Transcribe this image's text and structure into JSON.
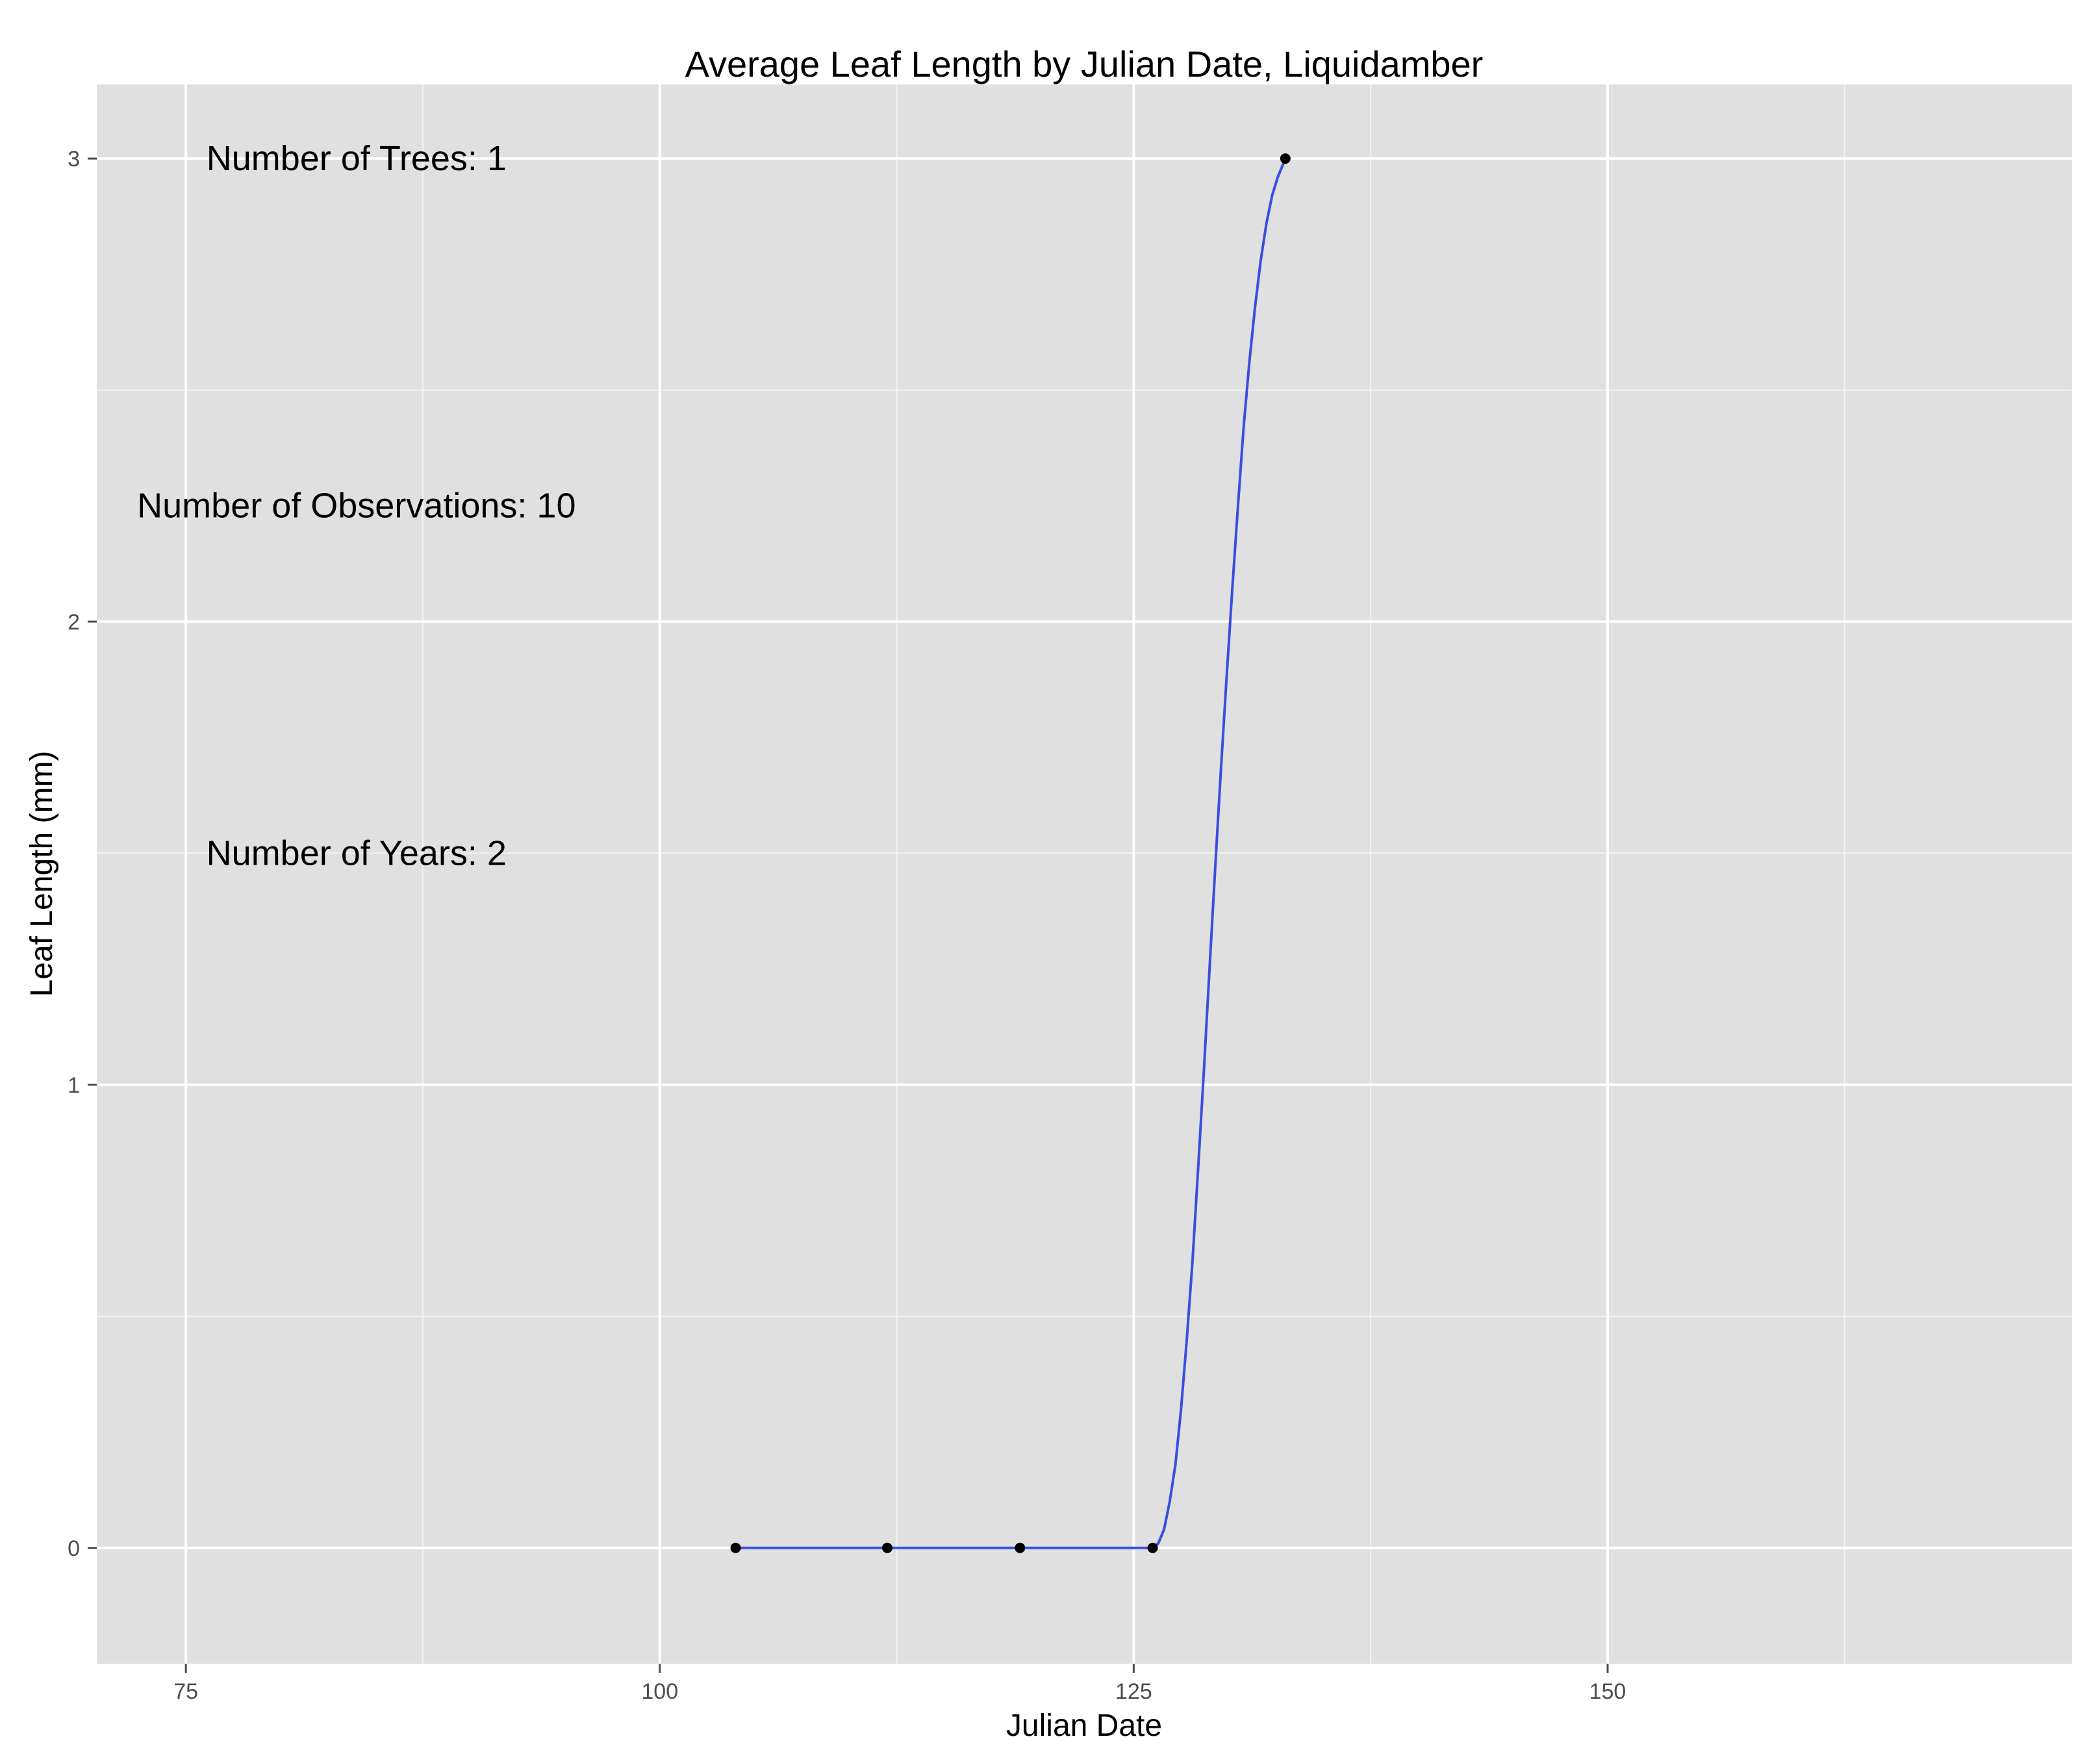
{
  "chart_data": {
    "type": "line",
    "title": "Average Leaf Length by Julian Date, Liquidamber",
    "xlabel": "Julian Date",
    "ylabel": "Leaf Length (mm)",
    "xlim": [
      70.3,
      174.5
    ],
    "ylim": [
      -0.25,
      3.16
    ],
    "x_ticks": [
      75,
      100,
      125,
      150
    ],
    "y_ticks": [
      0,
      1,
      2,
      3
    ],
    "grid": true,
    "points": [
      {
        "x": 104,
        "y": 0
      },
      {
        "x": 112,
        "y": 0
      },
      {
        "x": 119,
        "y": 0
      },
      {
        "x": 126,
        "y": 0
      },
      {
        "x": 133,
        "y": 3
      }
    ],
    "smooth_curve": [
      [
        104,
        0
      ],
      [
        112,
        0
      ],
      [
        119,
        0
      ],
      [
        126,
        0
      ],
      [
        126.3,
        0.01
      ],
      [
        126.6,
        0.04
      ],
      [
        126.9,
        0.1
      ],
      [
        127.2,
        0.18
      ],
      [
        127.5,
        0.3
      ],
      [
        127.8,
        0.45
      ],
      [
        128.1,
        0.62
      ],
      [
        128.4,
        0.82
      ],
      [
        128.7,
        1.03
      ],
      [
        129.0,
        1.25
      ],
      [
        129.3,
        1.47
      ],
      [
        129.6,
        1.68
      ],
      [
        129.9,
        1.88
      ],
      [
        130.2,
        2.07
      ],
      [
        130.5,
        2.25
      ],
      [
        130.8,
        2.42
      ],
      [
        131.1,
        2.56
      ],
      [
        131.4,
        2.68
      ],
      [
        131.7,
        2.78
      ],
      [
        132.0,
        2.86
      ],
      [
        132.3,
        2.92
      ],
      [
        132.6,
        2.96
      ],
      [
        133,
        3
      ]
    ],
    "line_color": "#3a4fe0",
    "point_color": "#000000",
    "annotations": [
      {
        "text": "Number of Trees: 1",
        "x": 84,
        "y": 3
      },
      {
        "text": "Number of Observations: 10",
        "x": 84,
        "y": 2.25
      },
      {
        "text": "Number of Years: 2",
        "x": 84,
        "y": 1.5
      }
    ]
  }
}
